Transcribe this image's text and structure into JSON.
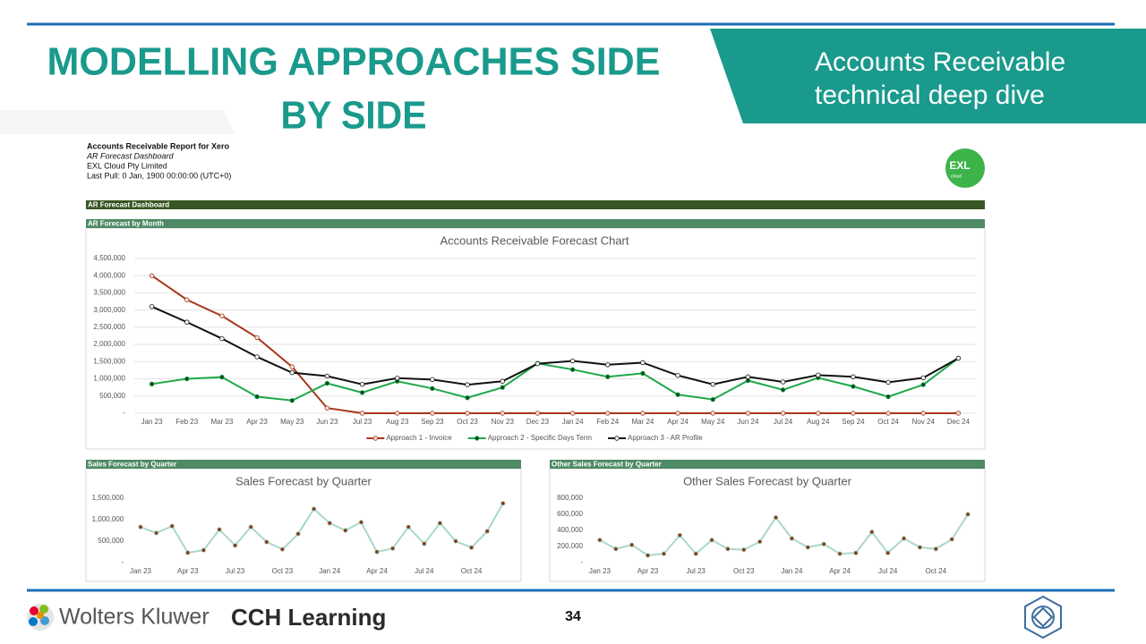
{
  "header": {
    "title": [
      "MODELLING APPROACHES SIDE",
      "BY SIDE"
    ],
    "subtitle": [
      "Accounts Receivable",
      "technical deep dive"
    ]
  },
  "report": {
    "lines": [
      "Accounts Receivable Report for Xero",
      "AR Forecast Dashboard",
      "EXL Cloud Pty Limited",
      "Last Pull: 0 Jan, 1900 00:00:00 (UTC+0)"
    ]
  },
  "logo": {
    "name": "EXL",
    "tag": "cloud"
  },
  "dashboard_bar": "AR Forecast Dashboard",
  "chart_data": [
    {
      "type": "line",
      "panel_title": "AR Forecast by Month",
      "title": "Accounts Receivable Forecast Chart",
      "categories": [
        "Jan 23",
        "Feb 23",
        "Mar 23",
        "Apr 23",
        "May 23",
        "Jun 23",
        "Jul 23",
        "Aug 23",
        "Sep 23",
        "Oct 23",
        "Nov 23",
        "Dec 23",
        "Jan 24",
        "Feb 24",
        "Mar 24",
        "Apr 24",
        "May 24",
        "Jun 24",
        "Jul 24",
        "Aug 24",
        "Sep 24",
        "Oct 24",
        "Nov 24",
        "Dec 24"
      ],
      "series": [
        {
          "name": "Approach 1 - Invoice",
          "color": "#a8361a",
          "marker_color": "#f4e4dc",
          "values": [
            4000000,
            3300000,
            2830000,
            2200000,
            1350000,
            150000,
            0,
            0,
            0,
            0,
            0,
            0,
            0,
            0,
            0,
            0,
            0,
            0,
            0,
            0,
            0,
            0,
            0,
            0
          ]
        },
        {
          "name": "Approach 2 - Specific Days Term",
          "color": "#1fa84a",
          "marker_color": "#0d4a22",
          "values": [
            850000,
            1000000,
            1050000,
            480000,
            370000,
            870000,
            600000,
            930000,
            720000,
            450000,
            750000,
            1450000,
            1270000,
            1060000,
            1160000,
            540000,
            400000,
            950000,
            680000,
            1030000,
            780000,
            480000,
            830000,
            1600000
          ]
        },
        {
          "name": "Approach 3 - AR Profile",
          "color": "#111111",
          "marker_color": "#ffffff",
          "values": [
            3100000,
            2650000,
            2170000,
            1640000,
            1180000,
            1080000,
            840000,
            1020000,
            980000,
            830000,
            930000,
            1440000,
            1520000,
            1410000,
            1470000,
            1100000,
            840000,
            1060000,
            910000,
            1110000,
            1060000,
            900000,
            1030000,
            1600000
          ]
        }
      ],
      "ylim": [
        0,
        4500000
      ],
      "yticks": [
        {
          "value": 0,
          "label": "-"
        },
        {
          "value": 500000,
          "label": "500,000"
        },
        {
          "value": 1000000,
          "label": "1,000,000"
        },
        {
          "value": 1500000,
          "label": "1,500,000"
        },
        {
          "value": 2000000,
          "label": "2,000,000"
        },
        {
          "value": 2500000,
          "label": "2,500,000"
        },
        {
          "value": 3000000,
          "label": "3,000,000"
        },
        {
          "value": 3500000,
          "label": "3,500,000"
        },
        {
          "value": 4000000,
          "label": "4,000,000"
        },
        {
          "value": 4500000,
          "label": "4,500,000"
        }
      ],
      "grid": true,
      "legend": "bottom"
    },
    {
      "type": "line",
      "panel_title": "Sales Forecast by Quarter",
      "title": "Sales Forecast by Quarter",
      "categories": [
        "Jan 23",
        null,
        null,
        "Apr 23",
        null,
        null,
        "Jul 23",
        null,
        null,
        "Oct 23",
        null,
        null,
        "Jan 24",
        null,
        null,
        "Apr 24",
        null,
        null,
        "Jul 24",
        null,
        null,
        "Oct 24",
        null,
        null
      ],
      "color": "#a8d8c8",
      "marker_color": "#8b3a1e",
      "values": [
        830000,
        690000,
        850000,
        230000,
        290000,
        770000,
        400000,
        830000,
        480000,
        310000,
        670000,
        1250000,
        920000,
        750000,
        940000,
        250000,
        330000,
        830000,
        440000,
        920000,
        500000,
        350000,
        730000,
        1380000
      ],
      "ylim": [
        0,
        1500000
      ],
      "yticks": [
        {
          "value": 0,
          "label": "-"
        },
        {
          "value": 500000,
          "label": "500,000"
        },
        {
          "value": 1000000,
          "label": "1,000,000"
        },
        {
          "value": 1500000,
          "label": "1,500,000"
        }
      ],
      "grid": false
    },
    {
      "type": "line",
      "panel_title": "Other Sales Forecast by Quarter",
      "title": "Other Sales Forecast by Quarter",
      "categories": [
        "Jan 23",
        null,
        null,
        "Apr 23",
        null,
        null,
        "Jul 23",
        null,
        null,
        "Oct 23",
        null,
        null,
        "Jan 24",
        null,
        null,
        "Apr 24",
        null,
        null,
        "Jul 24",
        null,
        null,
        "Oct 24",
        null,
        null
      ],
      "color": "#a8d8c8",
      "marker_color": "#8b3a1e",
      "values": [
        280000,
        170000,
        220000,
        90000,
        110000,
        340000,
        110000,
        280000,
        170000,
        160000,
        260000,
        560000,
        300000,
        190000,
        230000,
        110000,
        120000,
        380000,
        120000,
        300000,
        190000,
        170000,
        290000,
        600000
      ],
      "ylim": [
        0,
        800000
      ],
      "yticks": [
        {
          "value": 0,
          "label": "-"
        },
        {
          "value": 200000,
          "label": "200,000"
        },
        {
          "value": 400000,
          "label": "400,000"
        },
        {
          "value": 600000,
          "label": "600,000"
        },
        {
          "value": 800000,
          "label": "800,000"
        }
      ],
      "grid": false
    }
  ],
  "footer": {
    "brand": "Wolters Kluwer",
    "product": "CCH Learning",
    "page": "34"
  }
}
